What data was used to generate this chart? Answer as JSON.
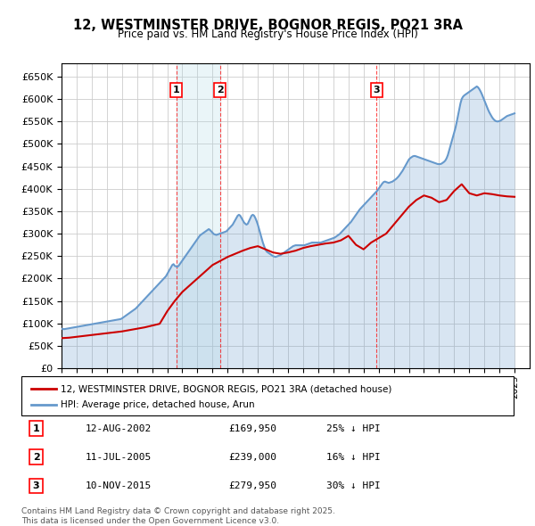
{
  "title": "12, WESTMINSTER DRIVE, BOGNOR REGIS, PO21 3RA",
  "subtitle": "Price paid vs. HM Land Registry's House Price Index (HPI)",
  "ylabel": "",
  "ylim": [
    0,
    680000
  ],
  "yticks": [
    0,
    50000,
    100000,
    150000,
    200000,
    250000,
    300000,
    350000,
    400000,
    450000,
    500000,
    550000,
    600000,
    650000
  ],
  "xlim_start": 1995.0,
  "xlim_end": 2026.0,
  "background_color": "#ffffff",
  "grid_color": "#cccccc",
  "hpi_color": "#6699cc",
  "price_color": "#cc0000",
  "legend_label_price": "12, WESTMINSTER DRIVE, BOGNOR REGIS, PO21 3RA (detached house)",
  "legend_label_hpi": "HPI: Average price, detached house, Arun",
  "transactions": [
    {
      "num": 1,
      "date": "12-AUG-2002",
      "price": 169950,
      "pct": "25%",
      "dir": "↓",
      "year": 2002.6
    },
    {
      "num": 2,
      "date": "11-JUL-2005",
      "price": 239000,
      "pct": "16%",
      "dir": "↓",
      "year": 2005.5
    },
    {
      "num": 3,
      "date": "10-NOV-2015",
      "price": 279950,
      "pct": "30%",
      "dir": "↓",
      "year": 2015.85
    }
  ],
  "footnote": "Contains HM Land Registry data © Crown copyright and database right 2025.\nThis data is licensed under the Open Government Licence v3.0.",
  "hpi_data": {
    "years": [
      1995.0,
      1995.083,
      1995.167,
      1995.25,
      1995.333,
      1995.417,
      1995.5,
      1995.583,
      1995.667,
      1995.75,
      1995.833,
      1995.917,
      1996.0,
      1996.083,
      1996.167,
      1996.25,
      1996.333,
      1996.417,
      1996.5,
      1996.583,
      1996.667,
      1996.75,
      1996.833,
      1996.917,
      1997.0,
      1997.083,
      1997.167,
      1997.25,
      1997.333,
      1997.417,
      1997.5,
      1997.583,
      1997.667,
      1997.75,
      1997.833,
      1997.917,
      1998.0,
      1998.083,
      1998.167,
      1998.25,
      1998.333,
      1998.417,
      1998.5,
      1998.583,
      1998.667,
      1998.75,
      1998.833,
      1998.917,
      1999.0,
      1999.083,
      1999.167,
      1999.25,
      1999.333,
      1999.417,
      1999.5,
      1999.583,
      1999.667,
      1999.75,
      1999.833,
      1999.917,
      2000.0,
      2000.083,
      2000.167,
      2000.25,
      2000.333,
      2000.417,
      2000.5,
      2000.583,
      2000.667,
      2000.75,
      2000.833,
      2000.917,
      2001.0,
      2001.083,
      2001.167,
      2001.25,
      2001.333,
      2001.417,
      2001.5,
      2001.583,
      2001.667,
      2001.75,
      2001.833,
      2001.917,
      2002.0,
      2002.083,
      2002.167,
      2002.25,
      2002.333,
      2002.417,
      2002.5,
      2002.583,
      2002.667,
      2002.75,
      2002.833,
      2002.917,
      2003.0,
      2003.083,
      2003.167,
      2003.25,
      2003.333,
      2003.417,
      2003.5,
      2003.583,
      2003.667,
      2003.75,
      2003.833,
      2003.917,
      2004.0,
      2004.083,
      2004.167,
      2004.25,
      2004.333,
      2004.417,
      2004.5,
      2004.583,
      2004.667,
      2004.75,
      2004.833,
      2004.917,
      2005.0,
      2005.083,
      2005.167,
      2005.25,
      2005.333,
      2005.417,
      2005.5,
      2005.583,
      2005.667,
      2005.75,
      2005.833,
      2005.917,
      2006.0,
      2006.083,
      2006.167,
      2006.25,
      2006.333,
      2006.417,
      2006.5,
      2006.583,
      2006.667,
      2006.75,
      2006.833,
      2006.917,
      2007.0,
      2007.083,
      2007.167,
      2007.25,
      2007.333,
      2007.417,
      2007.5,
      2007.583,
      2007.667,
      2007.75,
      2007.833,
      2007.917,
      2008.0,
      2008.083,
      2008.167,
      2008.25,
      2008.333,
      2008.417,
      2008.5,
      2008.583,
      2008.667,
      2008.75,
      2008.833,
      2008.917,
      2009.0,
      2009.083,
      2009.167,
      2009.25,
      2009.333,
      2009.417,
      2009.5,
      2009.583,
      2009.667,
      2009.75,
      2009.833,
      2009.917,
      2010.0,
      2010.083,
      2010.167,
      2010.25,
      2010.333,
      2010.417,
      2010.5,
      2010.583,
      2010.667,
      2010.75,
      2010.833,
      2010.917,
      2011.0,
      2011.083,
      2011.167,
      2011.25,
      2011.333,
      2011.417,
      2011.5,
      2011.583,
      2011.667,
      2011.75,
      2011.833,
      2011.917,
      2012.0,
      2012.083,
      2012.167,
      2012.25,
      2012.333,
      2012.417,
      2012.5,
      2012.583,
      2012.667,
      2012.75,
      2012.833,
      2012.917,
      2013.0,
      2013.083,
      2013.167,
      2013.25,
      2013.333,
      2013.417,
      2013.5,
      2013.583,
      2013.667,
      2013.75,
      2013.833,
      2013.917,
      2014.0,
      2014.083,
      2014.167,
      2014.25,
      2014.333,
      2014.417,
      2014.5,
      2014.583,
      2014.667,
      2014.75,
      2014.833,
      2014.917,
      2015.0,
      2015.083,
      2015.167,
      2015.25,
      2015.333,
      2015.417,
      2015.5,
      2015.583,
      2015.667,
      2015.75,
      2015.833,
      2015.917,
      2016.0,
      2016.083,
      2016.167,
      2016.25,
      2016.333,
      2016.417,
      2016.5,
      2016.583,
      2016.667,
      2016.75,
      2016.833,
      2016.917,
      2017.0,
      2017.083,
      2017.167,
      2017.25,
      2017.333,
      2017.417,
      2017.5,
      2017.583,
      2017.667,
      2017.75,
      2017.833,
      2017.917,
      2018.0,
      2018.083,
      2018.167,
      2018.25,
      2018.333,
      2018.417,
      2018.5,
      2018.583,
      2018.667,
      2018.75,
      2018.833,
      2018.917,
      2019.0,
      2019.083,
      2019.167,
      2019.25,
      2019.333,
      2019.417,
      2019.5,
      2019.583,
      2019.667,
      2019.75,
      2019.833,
      2019.917,
      2020.0,
      2020.083,
      2020.167,
      2020.25,
      2020.333,
      2020.417,
      2020.5,
      2020.583,
      2020.667,
      2020.75,
      2020.833,
      2020.917,
      2021.0,
      2021.083,
      2021.167,
      2021.25,
      2021.333,
      2021.417,
      2021.5,
      2021.583,
      2021.667,
      2021.75,
      2021.833,
      2021.917,
      2022.0,
      2022.083,
      2022.167,
      2022.25,
      2022.333,
      2022.417,
      2022.5,
      2022.583,
      2022.667,
      2022.75,
      2022.833,
      2022.917,
      2023.0,
      2023.083,
      2023.167,
      2023.25,
      2023.333,
      2023.417,
      2023.5,
      2023.583,
      2023.667,
      2023.75,
      2023.833,
      2023.917,
      2024.0,
      2024.083,
      2024.167,
      2024.25,
      2024.333,
      2024.417,
      2024.5,
      2024.583,
      2024.667,
      2024.75,
      2024.833,
      2024.917,
      2025.0
    ],
    "values": [
      88000,
      87500,
      87000,
      87500,
      88000,
      88500,
      89000,
      89500,
      90000,
      90500,
      91000,
      91500,
      92000,
      92500,
      93000,
      93500,
      94000,
      94500,
      95000,
      95500,
      96000,
      96500,
      97000,
      97500,
      98000,
      98500,
      99000,
      99500,
      100000,
      100500,
      101000,
      101500,
      102000,
      102500,
      103000,
      103500,
      104000,
      104500,
      105000,
      105500,
      106000,
      106500,
      107000,
      107500,
      108000,
      108500,
      109000,
      109500,
      111000,
      113000,
      115000,
      117000,
      119000,
      121000,
      123000,
      125000,
      127000,
      129000,
      131000,
      133000,
      136000,
      139000,
      142000,
      145000,
      148000,
      151000,
      154000,
      157000,
      160000,
      163000,
      166000,
      169000,
      172000,
      175000,
      178000,
      181000,
      184000,
      187000,
      190000,
      193000,
      196000,
      199000,
      202000,
      205000,
      210000,
      215000,
      220000,
      225000,
      230000,
      232000,
      228000,
      227000,
      226000,
      228000,
      232000,
      236000,
      240000,
      244000,
      248000,
      252000,
      256000,
      260000,
      264000,
      268000,
      272000,
      276000,
      280000,
      284000,
      288000,
      292000,
      296000,
      298000,
      300000,
      302000,
      304000,
      306000,
      308000,
      310000,
      308000,
      305000,
      302000,
      299000,
      298000,
      297000,
      298000,
      299000,
      300000,
      301000,
      302000,
      303000,
      304000,
      305000,
      308000,
      311000,
      314000,
      317000,
      320000,
      325000,
      330000,
      335000,
      340000,
      342000,
      340000,
      335000,
      330000,
      325000,
      322000,
      320000,
      322000,
      328000,
      334000,
      340000,
      342000,
      340000,
      335000,
      328000,
      320000,
      310000,
      300000,
      290000,
      280000,
      272000,
      265000,
      260000,
      258000,
      256000,
      254000,
      252000,
      250000,
      249000,
      248000,
      249000,
      250000,
      251000,
      252000,
      254000,
      256000,
      258000,
      260000,
      262000,
      264000,
      266000,
      268000,
      270000,
      272000,
      273000,
      274000,
      274000,
      274000,
      274000,
      274000,
      274000,
      274000,
      274000,
      275000,
      276000,
      277000,
      278000,
      279000,
      280000,
      280000,
      280000,
      280000,
      280000,
      280000,
      280000,
      280000,
      281000,
      282000,
      283000,
      284000,
      285000,
      286000,
      287000,
      288000,
      289000,
      290000,
      291000,
      293000,
      295000,
      297000,
      299000,
      302000,
      305000,
      308000,
      311000,
      314000,
      317000,
      320000,
      323000,
      326000,
      330000,
      334000,
      338000,
      342000,
      346000,
      350000,
      354000,
      357000,
      360000,
      363000,
      366000,
      369000,
      372000,
      375000,
      378000,
      381000,
      384000,
      387000,
      390000,
      393000,
      396000,
      400000,
      404000,
      408000,
      412000,
      415000,
      416000,
      415000,
      414000,
      413000,
      414000,
      415000,
      416000,
      418000,
      420000,
      422000,
      425000,
      428000,
      432000,
      436000,
      440000,
      445000,
      450000,
      455000,
      460000,
      465000,
      468000,
      470000,
      472000,
      473000,
      473000,
      472000,
      471000,
      470000,
      469000,
      468000,
      467000,
      466000,
      465000,
      464000,
      463000,
      462000,
      461000,
      460000,
      459000,
      458000,
      457000,
      456000,
      455000,
      455000,
      455000,
      456000,
      458000,
      460000,
      463000,
      468000,
      475000,
      485000,
      495000,
      505000,
      515000,
      525000,
      535000,
      548000,
      562000,
      576000,
      590000,
      600000,
      605000,
      608000,
      610000,
      612000,
      614000,
      616000,
      618000,
      620000,
      622000,
      624000,
      626000,
      628000,
      626000,
      622000,
      617000,
      611000,
      604000,
      597000,
      590000,
      583000,
      576000,
      570000,
      565000,
      560000,
      556000,
      553000,
      551000,
      550000,
      550000,
      551000,
      552000,
      554000,
      556000,
      558000,
      560000,
      562000,
      563000,
      564000,
      565000,
      566000,
      567000,
      568000
    ]
  },
  "price_data": {
    "years": [
      1995.0,
      1995.5,
      1996.0,
      1996.5,
      1997.0,
      1997.5,
      1998.0,
      1998.5,
      1999.0,
      1999.5,
      2000.0,
      2000.5,
      2001.0,
      2001.5,
      2002.0,
      2002.5,
      2003.0,
      2003.5,
      2004.0,
      2004.5,
      2005.0,
      2005.5,
      2006.0,
      2006.5,
      2007.0,
      2007.5,
      2008.0,
      2008.5,
      2009.0,
      2009.5,
      2010.0,
      2010.5,
      2011.0,
      2011.5,
      2012.0,
      2012.5,
      2013.0,
      2013.5,
      2014.0,
      2014.5,
      2015.0,
      2015.5,
      2016.0,
      2016.5,
      2017.0,
      2017.5,
      2018.0,
      2018.5,
      2019.0,
      2019.5,
      2020.0,
      2020.5,
      2021.0,
      2021.5,
      2022.0,
      2022.5,
      2023.0,
      2023.5,
      2024.0,
      2024.5,
      2025.0
    ],
    "values": [
      67000,
      68000,
      70000,
      72000,
      74000,
      76000,
      78000,
      80000,
      82000,
      85000,
      88000,
      91000,
      95000,
      99000,
      127000,
      150000,
      169950,
      185000,
      200000,
      215000,
      230000,
      239000,
      248000,
      255000,
      262000,
      268000,
      272000,
      265000,
      258000,
      255000,
      258000,
      262000,
      268000,
      272000,
      275000,
      278000,
      280000,
      285000,
      295000,
      275000,
      265000,
      279950,
      290000,
      300000,
      320000,
      340000,
      360000,
      375000,
      385000,
      380000,
      370000,
      375000,
      395000,
      410000,
      390000,
      385000,
      390000,
      388000,
      385000,
      383000,
      382000
    ]
  }
}
